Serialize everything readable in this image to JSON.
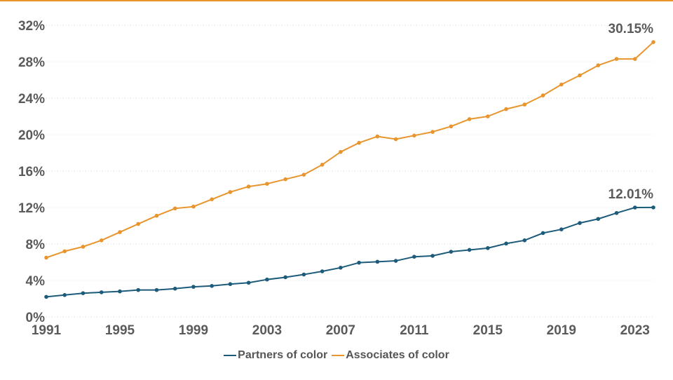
{
  "chart_data": {
    "type": "line",
    "x": [
      1991,
      1992,
      1993,
      1994,
      1995,
      1996,
      1997,
      1998,
      1999,
      2000,
      2001,
      2002,
      2003,
      2004,
      2005,
      2006,
      2007,
      2008,
      2009,
      2010,
      2011,
      2012,
      2013,
      2014,
      2015,
      2016,
      2017,
      2018,
      2019,
      2020,
      2021,
      2022,
      2023,
      2024
    ],
    "x_ticks": [
      "1991",
      "1995",
      "1999",
      "2003",
      "2007",
      "2011",
      "2015",
      "2019",
      "2023"
    ],
    "y_ticks": [
      "0%",
      "4%",
      "8%",
      "12%",
      "16%",
      "20%",
      "24%",
      "28%",
      "32%"
    ],
    "ylim": [
      0,
      32
    ],
    "grid": "horizontal dotted",
    "legend_position": "bottom-center",
    "series": [
      {
        "name": "Partners of color",
        "color": "#1d5b7a",
        "values": [
          2.2,
          2.4,
          2.6,
          2.7,
          2.8,
          2.95,
          2.95,
          3.1,
          3.3,
          3.4,
          3.6,
          3.75,
          4.1,
          4.35,
          4.65,
          5.0,
          5.4,
          5.95,
          6.05,
          6.15,
          6.6,
          6.7,
          7.15,
          7.35,
          7.55,
          8.05,
          8.4,
          9.2,
          9.6,
          10.3,
          10.75,
          11.4,
          12.0,
          12.01
        ],
        "end_label": "12.01%"
      },
      {
        "name": "Associates of color",
        "color": "#e8952e",
        "values": [
          6.5,
          7.2,
          7.7,
          8.4,
          9.3,
          10.2,
          11.1,
          11.9,
          12.1,
          12.9,
          13.7,
          14.3,
          14.6,
          15.1,
          15.6,
          16.7,
          18.1,
          19.1,
          19.8,
          19.5,
          19.9,
          20.3,
          20.9,
          21.7,
          22.0,
          22.8,
          23.3,
          24.3,
          25.5,
          26.5,
          27.6,
          28.3,
          28.3,
          30.15
        ],
        "end_label": "30.15%"
      }
    ]
  }
}
